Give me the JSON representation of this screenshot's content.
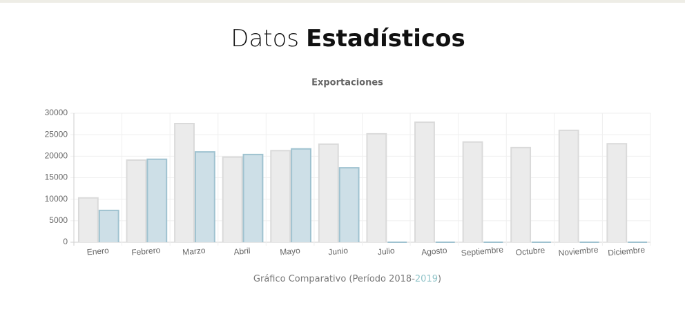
{
  "header": {
    "title_light": "Datos",
    "title_bold": "Estadísticos"
  },
  "chart_data": {
    "type": "bar",
    "title": "Exportaciones",
    "categories": [
      "Enero",
      "Febrero",
      "Marzo",
      "Abril",
      "Mayo",
      "Junio",
      "Julio",
      "Agosto",
      "Septiembre",
      "Octubre",
      "Noviembre",
      "Diciembre"
    ],
    "series": [
      {
        "color": "#ebebeb",
        "values": [
          10300,
          19100,
          27600,
          19800,
          21300,
          22800,
          25200,
          27900,
          23300,
          22000,
          26000,
          22900
        ]
      },
      {
        "color": "#cddfe7",
        "values": [
          7400,
          19300,
          21000,
          20400,
          21700,
          17300,
          0,
          0,
          0,
          0,
          0,
          0
        ]
      }
    ],
    "ylim": [
      0,
      30000
    ],
    "yticks": [
      0,
      5000,
      10000,
      15000,
      20000,
      25000,
      30000
    ],
    "grid": true
  },
  "caption": {
    "prefix": "Gráfico Comparativo (Período 2018-",
    "year": "2019",
    "suffix": ")"
  }
}
